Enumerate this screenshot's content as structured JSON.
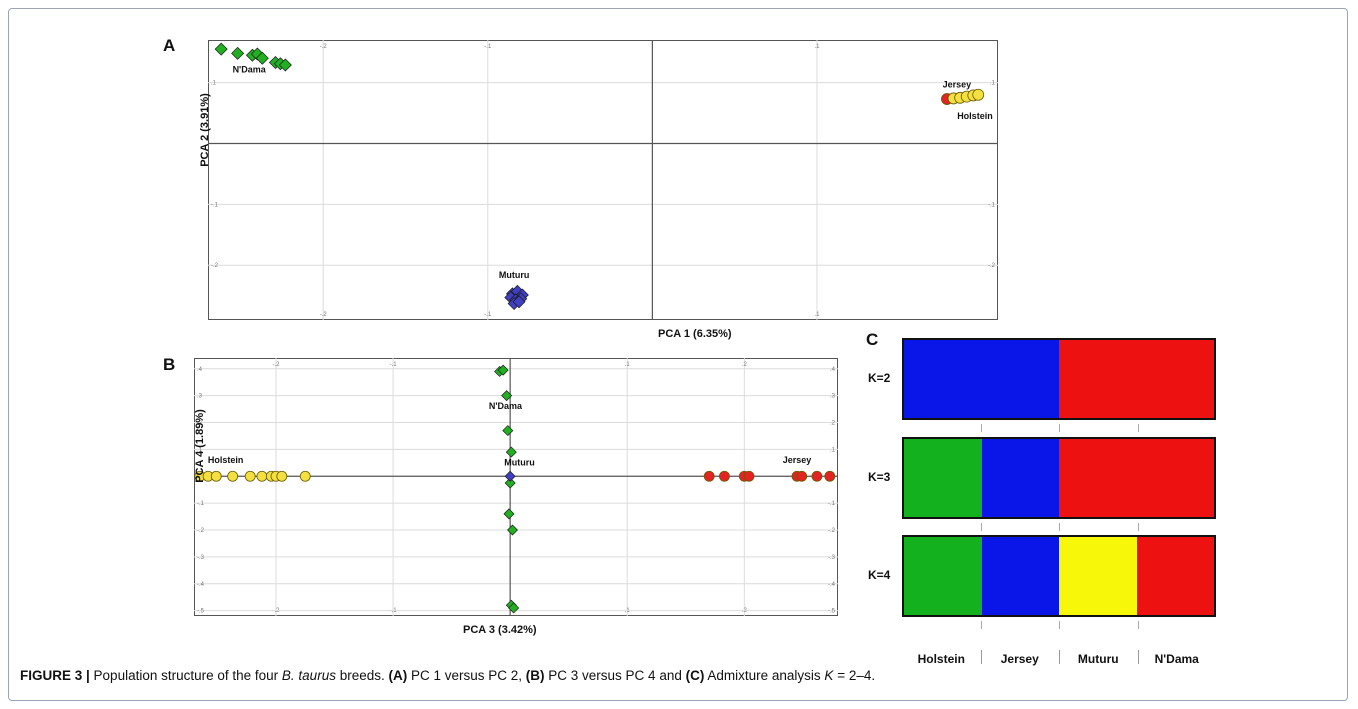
{
  "caption": {
    "figure_label": "FIGURE 3 |",
    "text_1": " Population structure of the four ",
    "species": "B. taurus",
    "text_2": " breeds. ",
    "a_label": "(A)",
    "a_text": " PC 1 versus PC 2, ",
    "b_label": "(B)",
    "b_text": " PC 3 versus PC 4 and ",
    "c_label": "(C)",
    "c_text": " Admixture analysis ",
    "k_var": "K",
    "k_range": " = 2–4."
  },
  "panels": {
    "a": {
      "letter": "A",
      "xlabel": "PCA 1 (6.35%)",
      "ylabel": "PCA 2 (3.91%)"
    },
    "b": {
      "letter": "B",
      "xlabel": "PCA 3 (3.42%)",
      "ylabel": "PCA 4 (1.89%)"
    },
    "c": {
      "letter": "C"
    }
  },
  "chart_data": [
    {
      "type": "scatter",
      "panel": "A",
      "xlabel": "PCA 1 (6.35%)",
      "ylabel": "PCA 2 (3.91%)",
      "xlim": [
        -0.27,
        0.21
      ],
      "ylim": [
        -0.29,
        0.17
      ],
      "x_ticks": [
        -0.2,
        -0.1,
        0.1
      ],
      "y_ticks": [
        0.1,
        -0.1,
        -0.2
      ],
      "grid": true,
      "series": [
        {
          "name": "N'Dama",
          "color": "#22b022",
          "marker": "diamond",
          "label_pos": [
            -0.245,
            0.117
          ],
          "x": [
            -0.262,
            -0.252,
            -0.243,
            -0.24,
            -0.237,
            -0.229,
            -0.226,
            -0.223
          ],
          "y": [
            0.155,
            0.148,
            0.145,
            0.147,
            0.14,
            0.133,
            0.131,
            0.129
          ]
        },
        {
          "name": "Muturu",
          "color": "#3f3fbf",
          "marker": "diamond",
          "label_pos": [
            -0.084,
            -0.221
          ],
          "x": [
            -0.085,
            -0.082,
            -0.079,
            -0.086,
            -0.083,
            -0.08,
            -0.084,
            -0.081
          ],
          "y": [
            -0.247,
            -0.243,
            -0.249,
            -0.253,
            -0.257,
            -0.255,
            -0.263,
            -0.26
          ]
        },
        {
          "name": "Jersey",
          "color": "#e32222",
          "marker": "circle",
          "label_pos": [
            0.185,
            0.092
          ],
          "x": [
            0.179
          ],
          "y": [
            0.073
          ]
        },
        {
          "name": "Holstein",
          "color": "#f4e040",
          "marker": "circle",
          "label_pos": [
            0.196,
            0.04
          ],
          "x": [
            0.183,
            0.187,
            0.191,
            0.195,
            0.198
          ],
          "y": [
            0.074,
            0.075,
            0.077,
            0.079,
            0.08
          ]
        }
      ]
    },
    {
      "type": "scatter",
      "panel": "B",
      "xlabel": "PCA 3 (3.42%)",
      "ylabel": "PCA 4 (1.89%)",
      "xlim": [
        -0.27,
        0.28
      ],
      "ylim": [
        -0.52,
        0.44
      ],
      "x_ticks": [
        -0.2,
        -0.1,
        0.1,
        0.2
      ],
      "y_ticks": [
        0.4,
        0.3,
        0.2,
        0.1,
        -0.1,
        -0.2,
        -0.3,
        -0.4,
        -0.5
      ],
      "grid": true,
      "series": [
        {
          "name": "N'Dama",
          "color": "#22b022",
          "marker": "diamond",
          "label_pos": [
            -0.004,
            0.25
          ],
          "x": [
            -0.009,
            -0.006,
            -0.003,
            -0.002,
            0.001,
            0.0,
            -0.001,
            0.002,
            0.001,
            0.003
          ],
          "y": [
            0.39,
            0.395,
            0.3,
            0.17,
            0.09,
            -0.025,
            -0.14,
            -0.2,
            -0.48,
            -0.49
          ]
        },
        {
          "name": "Muturu",
          "color": "#3f3fbf",
          "marker": "diamond",
          "label_pos": [
            0.008,
            0.04
          ],
          "x": [
            0.0
          ],
          "y": [
            0.0
          ]
        },
        {
          "name": "Holstein",
          "color": "#f4e040",
          "marker": "circle",
          "label_pos": [
            -0.243,
            0.05
          ],
          "x": [
            -0.265,
            -0.258,
            -0.251,
            -0.237,
            -0.222,
            -0.212,
            -0.204,
            -0.2,
            -0.195,
            -0.175
          ],
          "y": [
            0,
            0,
            0,
            0,
            0,
            0,
            0,
            0,
            0,
            0
          ]
        },
        {
          "name": "Jersey",
          "color": "#e32222",
          "marker": "circle",
          "label_pos": [
            0.245,
            0.05
          ],
          "x": [
            0.17,
            0.183,
            0.2,
            0.204,
            0.245,
            0.249,
            0.262,
            0.273
          ],
          "y": [
            0,
            0,
            0,
            0,
            0,
            0,
            0,
            0
          ]
        }
      ]
    },
    {
      "type": "bar",
      "panel": "C",
      "title": "Admixture",
      "categories": [
        "Holstein",
        "Jersey",
        "Muturu",
        "N'Dama"
      ],
      "k_values": [
        {
          "label": "K=2",
          "segments": [
            {
              "color": "#0a16e8",
              "fraction": 0.5
            },
            {
              "color": "#ee1111",
              "fraction": 0.5
            }
          ]
        },
        {
          "label": "K=3",
          "segments": [
            {
              "color": "#14b11e",
              "fraction": 0.25
            },
            {
              "color": "#0a16e8",
              "fraction": 0.25
            },
            {
              "color": "#ee1111",
              "fraction": 0.5
            }
          ]
        },
        {
          "label": "K=4",
          "segments": [
            {
              "color": "#14b11e",
              "fraction": 0.25
            },
            {
              "color": "#0a16e8",
              "fraction": 0.25
            },
            {
              "color": "#f7f70a",
              "fraction": 0.25
            },
            {
              "color": "#ee1111",
              "fraction": 0.25
            }
          ]
        }
      ]
    }
  ]
}
